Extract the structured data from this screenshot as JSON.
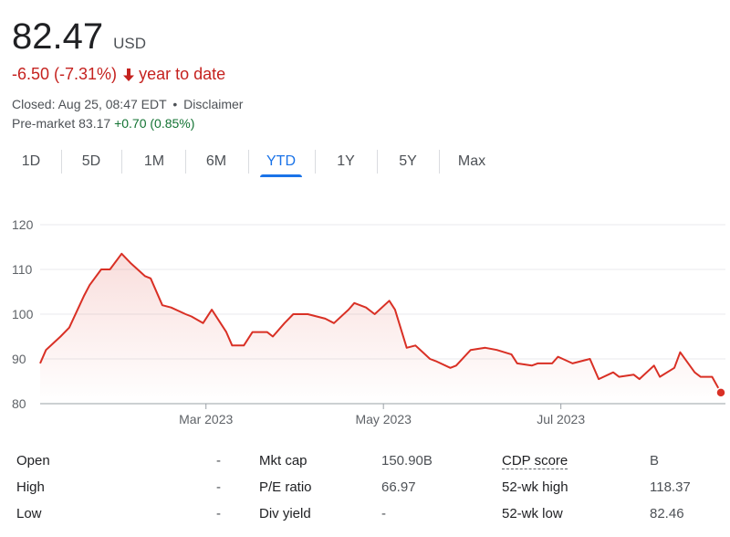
{
  "quote": {
    "price": "82.47",
    "currency": "USD",
    "change": "-6.50 (-7.31%)",
    "change_period": "year to date",
    "closed": "Closed: Aug 25, 08:47 EDT",
    "separator": "•",
    "disclaimer": "Disclaimer",
    "premarket_label": "Pre-market",
    "premarket_price": "83.17",
    "premarket_change": "+0.70 (0.85%)"
  },
  "colors": {
    "negative": "#c5221f",
    "positive": "#137333",
    "accent": "#1a73e8",
    "line": "#d93025"
  },
  "range_tabs": [
    "1D",
    "5D",
    "1M",
    "6M",
    "YTD",
    "1Y",
    "5Y",
    "Max"
  ],
  "active_range": "YTD",
  "chart_data": {
    "type": "line",
    "x_tick_labels": [
      "Mar 2023",
      "May 2023",
      "Jul 2023"
    ],
    "y_ticks": [
      80,
      90,
      100,
      110,
      120
    ],
    "ylim": [
      80,
      122
    ],
    "grid": true,
    "fill": "area-gradient",
    "series": [
      {
        "x": [
          "2023-01-03",
          "2023-01-05",
          "2023-01-10",
          "2023-01-13",
          "2023-01-18",
          "2023-01-20",
          "2023-01-24",
          "2023-01-27",
          "2023-01-31",
          "2023-02-03",
          "2023-02-08",
          "2023-02-10",
          "2023-02-14",
          "2023-02-17",
          "2023-02-22",
          "2023-02-24",
          "2023-02-28",
          "2023-03-03",
          "2023-03-08",
          "2023-03-10",
          "2023-03-14",
          "2023-03-17",
          "2023-03-22",
          "2023-03-24",
          "2023-03-28",
          "2023-03-31",
          "2023-04-05",
          "2023-04-11",
          "2023-04-14",
          "2023-04-19",
          "2023-04-21",
          "2023-04-25",
          "2023-04-28",
          "2023-05-03",
          "2023-05-05",
          "2023-05-09",
          "2023-05-12",
          "2023-05-17",
          "2023-05-19",
          "2023-05-24",
          "2023-05-26",
          "2023-05-31",
          "2023-06-05",
          "2023-06-09",
          "2023-06-14",
          "2023-06-16",
          "2023-06-21",
          "2023-06-23",
          "2023-06-28",
          "2023-06-30",
          "2023-07-05",
          "2023-07-11",
          "2023-07-14",
          "2023-07-19",
          "2023-07-21",
          "2023-07-26",
          "2023-07-28",
          "2023-08-02",
          "2023-08-04",
          "2023-08-09",
          "2023-08-11",
          "2023-08-16",
          "2023-08-18",
          "2023-08-22",
          "2023-08-25"
        ],
        "y": [
          89.0,
          92.0,
          95.0,
          97.0,
          104.0,
          106.5,
          110.0,
          110.0,
          113.5,
          111.5,
          108.5,
          108.0,
          102.0,
          101.5,
          100.0,
          99.5,
          98.0,
          101.0,
          96.0,
          93.0,
          93.0,
          96.0,
          96.0,
          95.0,
          98.0,
          100.0,
          100.0,
          99.0,
          98.0,
          101.0,
          102.5,
          101.5,
          100.0,
          103.0,
          101.0,
          92.5,
          93.0,
          90.0,
          89.5,
          88.0,
          88.5,
          92.0,
          92.5,
          92.0,
          91.0,
          89.0,
          88.5,
          89.0,
          89.0,
          90.5,
          89.0,
          90.0,
          85.5,
          87.0,
          86.0,
          86.5,
          85.5,
          88.5,
          86.0,
          88.0,
          91.5,
          87.0,
          86.0,
          86.0,
          82.47
        ]
      }
    ]
  },
  "stats": [
    [
      {
        "label": "Open",
        "value": "-"
      },
      {
        "label": "Mkt cap",
        "value": "150.90B"
      },
      {
        "label": "CDP score",
        "value": "B"
      }
    ],
    [
      {
        "label": "High",
        "value": "-"
      },
      {
        "label": "P/E ratio",
        "value": "66.97"
      },
      {
        "label": "52-wk high",
        "value": "118.37"
      }
    ],
    [
      {
        "label": "Low",
        "value": "-"
      },
      {
        "label": "Div yield",
        "value": "-"
      },
      {
        "label": "52-wk low",
        "value": "82.46"
      }
    ]
  ]
}
